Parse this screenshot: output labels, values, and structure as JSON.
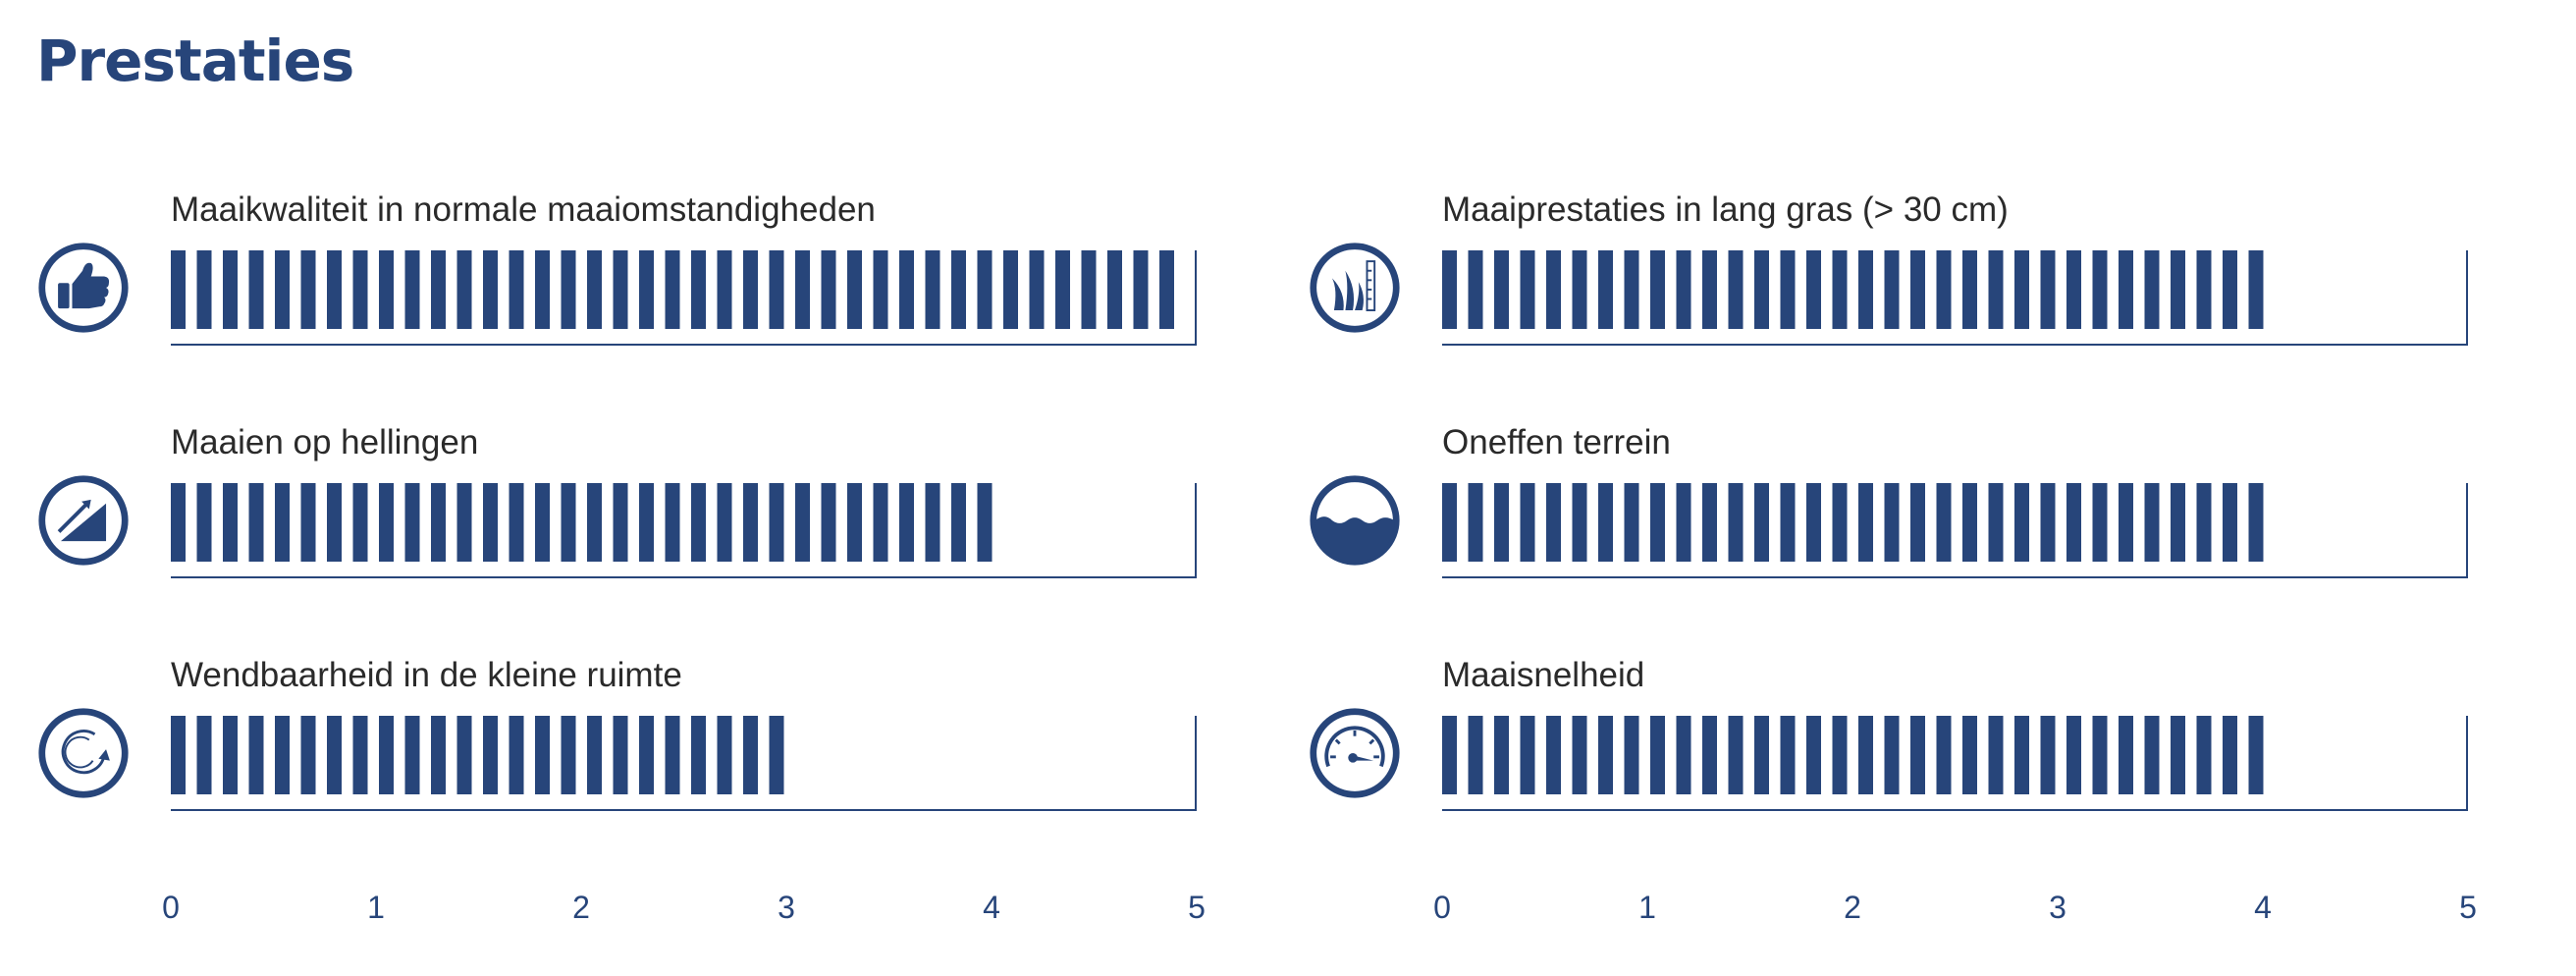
{
  "page": {
    "title": "Prestaties",
    "accent_color": "#27457a"
  },
  "chart_data": {
    "type": "bar",
    "orientation": "horizontal",
    "xlim": [
      0,
      5
    ],
    "ticks": [
      "0",
      "1",
      "2",
      "3",
      "4",
      "5"
    ],
    "grid": false,
    "legend": "none",
    "metrics": [
      {
        "label": "Maaikwaliteit in normale maaiomstandigheden",
        "value": 5,
        "icon": "thumbs-up-icon"
      },
      {
        "label": "Maaien op hellingen",
        "value": 4,
        "icon": "slope-icon"
      },
      {
        "label": "Wendbaarheid in de kleine ruimte",
        "value": 3,
        "icon": "turn-circle-icon"
      },
      {
        "label": "Maaiprestaties in lang gras (> 30 cm)",
        "value": 4,
        "icon": "long-grass-icon"
      },
      {
        "label": "Oneffen terrein",
        "value": 4,
        "icon": "uneven-terrain-icon"
      },
      {
        "label": "Maaisnelheid",
        "value": 4,
        "icon": "speedometer-icon"
      }
    ]
  }
}
